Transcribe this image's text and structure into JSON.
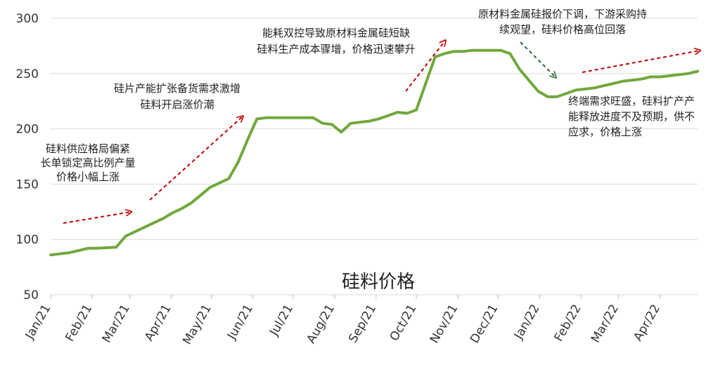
{
  "chart_data": {
    "type": "line",
    "title": "硅料价格",
    "xlabel": "",
    "ylabel": "",
    "ylim": [
      50,
      300
    ],
    "yticks": [
      50,
      100,
      150,
      200,
      250,
      300
    ],
    "grid": "horizontal",
    "legend": "none",
    "line_color": "#70a83c",
    "grid_color": "#d9d9d9",
    "x_tick_labels": [
      "Jan/21",
      "Feb/21",
      "Mar/21",
      "Apr/21",
      "May/21",
      "Jun/21",
      "Jul/21",
      "Aug/21",
      "Sep/21",
      "Oct/21",
      "Nov/21",
      "Dec/21",
      "Jan/22",
      "Feb/22",
      "Mar/22",
      "Apr/22"
    ],
    "series": [
      {
        "x": [
          "2021-01-01",
          "2021-01-08",
          "2021-01-15",
          "2021-01-22",
          "2021-01-29",
          "2021-02-05",
          "2021-02-12",
          "2021-02-19",
          "2021-02-26",
          "2021-03-05",
          "2021-03-12",
          "2021-03-19",
          "2021-03-26",
          "2021-04-02",
          "2021-04-09",
          "2021-04-16",
          "2021-04-23",
          "2021-04-30",
          "2021-05-07",
          "2021-05-14",
          "2021-05-21",
          "2021-05-28",
          "2021-06-04",
          "2021-06-11",
          "2021-06-18",
          "2021-06-25",
          "2021-07-02",
          "2021-07-09",
          "2021-07-16",
          "2021-07-23",
          "2021-07-30",
          "2021-08-06",
          "2021-08-13",
          "2021-08-20",
          "2021-08-27",
          "2021-09-03",
          "2021-09-10",
          "2021-09-17",
          "2021-09-24",
          "2021-10-01",
          "2021-10-08",
          "2021-10-15",
          "2021-10-22",
          "2021-10-29",
          "2021-11-05",
          "2021-11-12",
          "2021-11-19",
          "2021-11-26",
          "2021-12-03",
          "2021-12-10",
          "2021-12-17",
          "2021-12-24",
          "2021-12-31",
          "2022-01-07",
          "2022-01-14",
          "2022-01-21",
          "2022-01-28",
          "2022-02-04",
          "2022-02-11",
          "2022-02-18",
          "2022-02-25",
          "2022-03-04",
          "2022-03-11",
          "2022-03-18",
          "2022-03-25",
          "2022-04-01",
          "2022-04-08",
          "2022-04-15",
          "2022-04-22",
          "2022-04-29"
        ],
        "values": [
          86,
          87,
          88,
          90,
          92,
          92,
          92.5,
          93,
          103,
          107,
          111,
          115,
          119,
          124,
          128,
          133,
          140,
          147,
          151,
          155,
          170,
          190,
          209,
          210,
          210,
          210,
          210,
          210,
          210,
          205,
          204,
          197,
          205,
          206,
          207,
          209,
          212,
          215,
          214,
          217,
          241,
          265,
          268,
          270,
          270,
          271,
          271,
          271,
          271,
          268,
          254,
          244,
          234,
          229,
          229,
          232,
          235,
          236,
          237,
          239,
          241,
          243,
          244,
          245,
          247,
          247,
          248,
          249,
          250,
          252
        ]
      }
    ],
    "annotations": [
      {
        "lines": [
          "硅料供应格局偏紧",
          "长单锁定高比例产量",
          "价格小幅上涨"
        ]
      },
      {
        "lines": [
          "硅片产能扩张备货需求激增",
          "硅料开启涨价潮"
        ]
      },
      {
        "lines": [
          "能耗双控导致原材料金属硅短缺",
          "硅料生产成本骤增，价格迅速攀升"
        ]
      },
      {
        "lines": [
          "原材料金属硅报价下调，下游采购持",
          "续观望，硅料价格高位回落"
        ]
      },
      {
        "lines": [
          "终端需求旺盛，硅料扩产产",
          "能释放进度不及预期，供不",
          "应求，价格上涨"
        ]
      }
    ],
    "arrow_color": "#c00000",
    "down_arrow_color": "#2e6b2e"
  }
}
